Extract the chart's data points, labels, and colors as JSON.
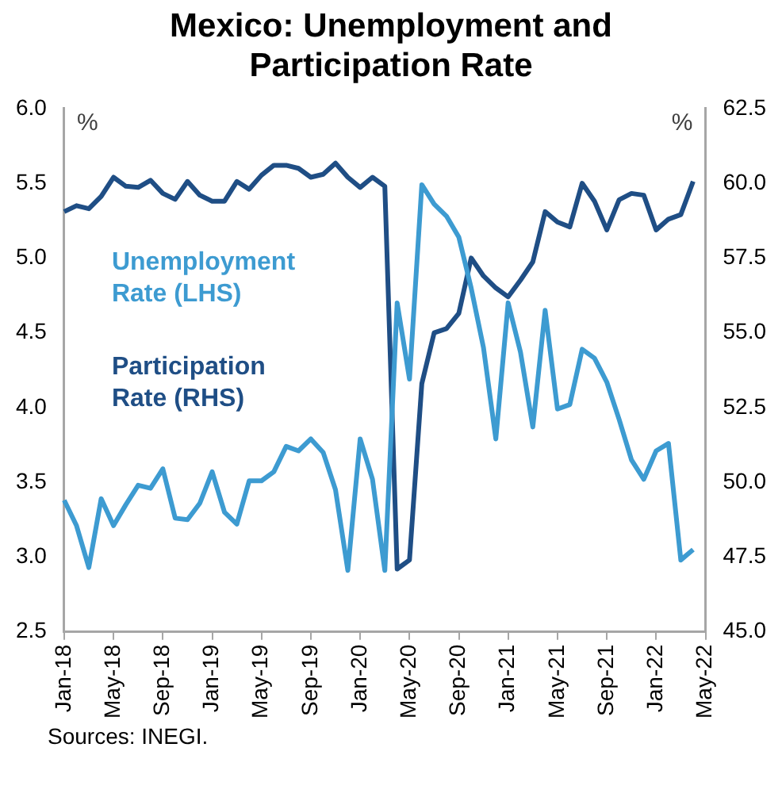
{
  "chart_data": {
    "type": "line",
    "title": "Mexico: Unemployment and Participation Rate",
    "ylabel": "%",
    "y2label": "%",
    "annotations": [
      "Sources: INEGI."
    ],
    "categories": [
      "Jan-18",
      null,
      null,
      null,
      "May-18",
      null,
      null,
      null,
      "Sep-18",
      null,
      null,
      null,
      "Jan-19",
      null,
      null,
      null,
      "May-19",
      null,
      null,
      null,
      "Sep-19",
      null,
      null,
      null,
      "Jan-20",
      null,
      null,
      null,
      "May-20",
      null,
      null,
      null,
      "Sep-20",
      null,
      null,
      null,
      "Jan-21",
      null,
      null,
      null,
      "May-21",
      null,
      null,
      null,
      "Sep-21",
      null,
      null,
      null,
      "Jan-22",
      null,
      null,
      null,
      "May-22"
    ],
    "series": [
      {
        "name": "Unemployment Rate (LHS)",
        "color": "#3d9bd1",
        "values": [
          3.38,
          3.21,
          2.93,
          3.39,
          3.21,
          3.35,
          3.48,
          3.46,
          3.59,
          3.26,
          3.25,
          3.36,
          3.57,
          3.3,
          3.22,
          3.51,
          3.51,
          3.57,
          3.74,
          3.71,
          3.79,
          3.7,
          3.45,
          2.91,
          3.79,
          3.52,
          2.91,
          4.7,
          4.19,
          5.49,
          5.36,
          5.28,
          5.14,
          4.8,
          4.4,
          3.79,
          4.7,
          4.37,
          3.87,
          4.65,
          3.99,
          4.02,
          4.39,
          4.33,
          4.17,
          3.92,
          3.65,
          3.52,
          3.71,
          3.76,
          2.98,
          3.05,
          null
        ]
      },
      {
        "name": "Participation Rate (RHS)",
        "color": "#1f4e85",
        "axis": "y2",
        "values": [
          59.05,
          59.25,
          59.15,
          59.56,
          60.2,
          59.9,
          59.86,
          60.1,
          59.66,
          59.46,
          60.06,
          59.6,
          59.4,
          59.4,
          60.06,
          59.8,
          60.27,
          60.6,
          60.6,
          60.5,
          60.2,
          60.3,
          60.67,
          60.2,
          59.86,
          60.2,
          59.9,
          47.1,
          47.4,
          53.3,
          55.0,
          55.14,
          55.65,
          57.5,
          56.9,
          56.5,
          56.2,
          56.76,
          57.37,
          59.05,
          58.7,
          58.54,
          60.0,
          59.4,
          58.44,
          59.45,
          59.66,
          59.6,
          58.44,
          58.8,
          58.95,
          60.06,
          null
        ]
      }
    ],
    "ylim": [
      2.5,
      6.0
    ],
    "yticks": [
      {
        "value": 2.5,
        "label": "2.5"
      },
      {
        "value": 3,
        "label": "3.0"
      },
      {
        "value": 3.5,
        "label": "3.5"
      },
      {
        "value": 4,
        "label": "4.0"
      },
      {
        "value": 4.5,
        "label": "4.5"
      },
      {
        "value": 5,
        "label": "5.0"
      },
      {
        "value": 5.5,
        "label": "5.5"
      },
      {
        "value": 6,
        "label": "6.0"
      }
    ],
    "y2lim": [
      45,
      62.5
    ],
    "y2ticks": [
      {
        "value": 45,
        "label": "45.0"
      },
      {
        "value": 47.5,
        "label": "47.5"
      },
      {
        "value": 50,
        "label": "50.0"
      },
      {
        "value": 52.5,
        "label": "52.5"
      },
      {
        "value": 55,
        "label": "55.0"
      },
      {
        "value": 57.5,
        "label": "57.5"
      },
      {
        "value": 60,
        "label": "60.0"
      },
      {
        "value": 62.5,
        "label": "62.5"
      }
    ],
    "grid": false,
    "legend": false,
    "marker": "none",
    "line_style": "solid"
  }
}
